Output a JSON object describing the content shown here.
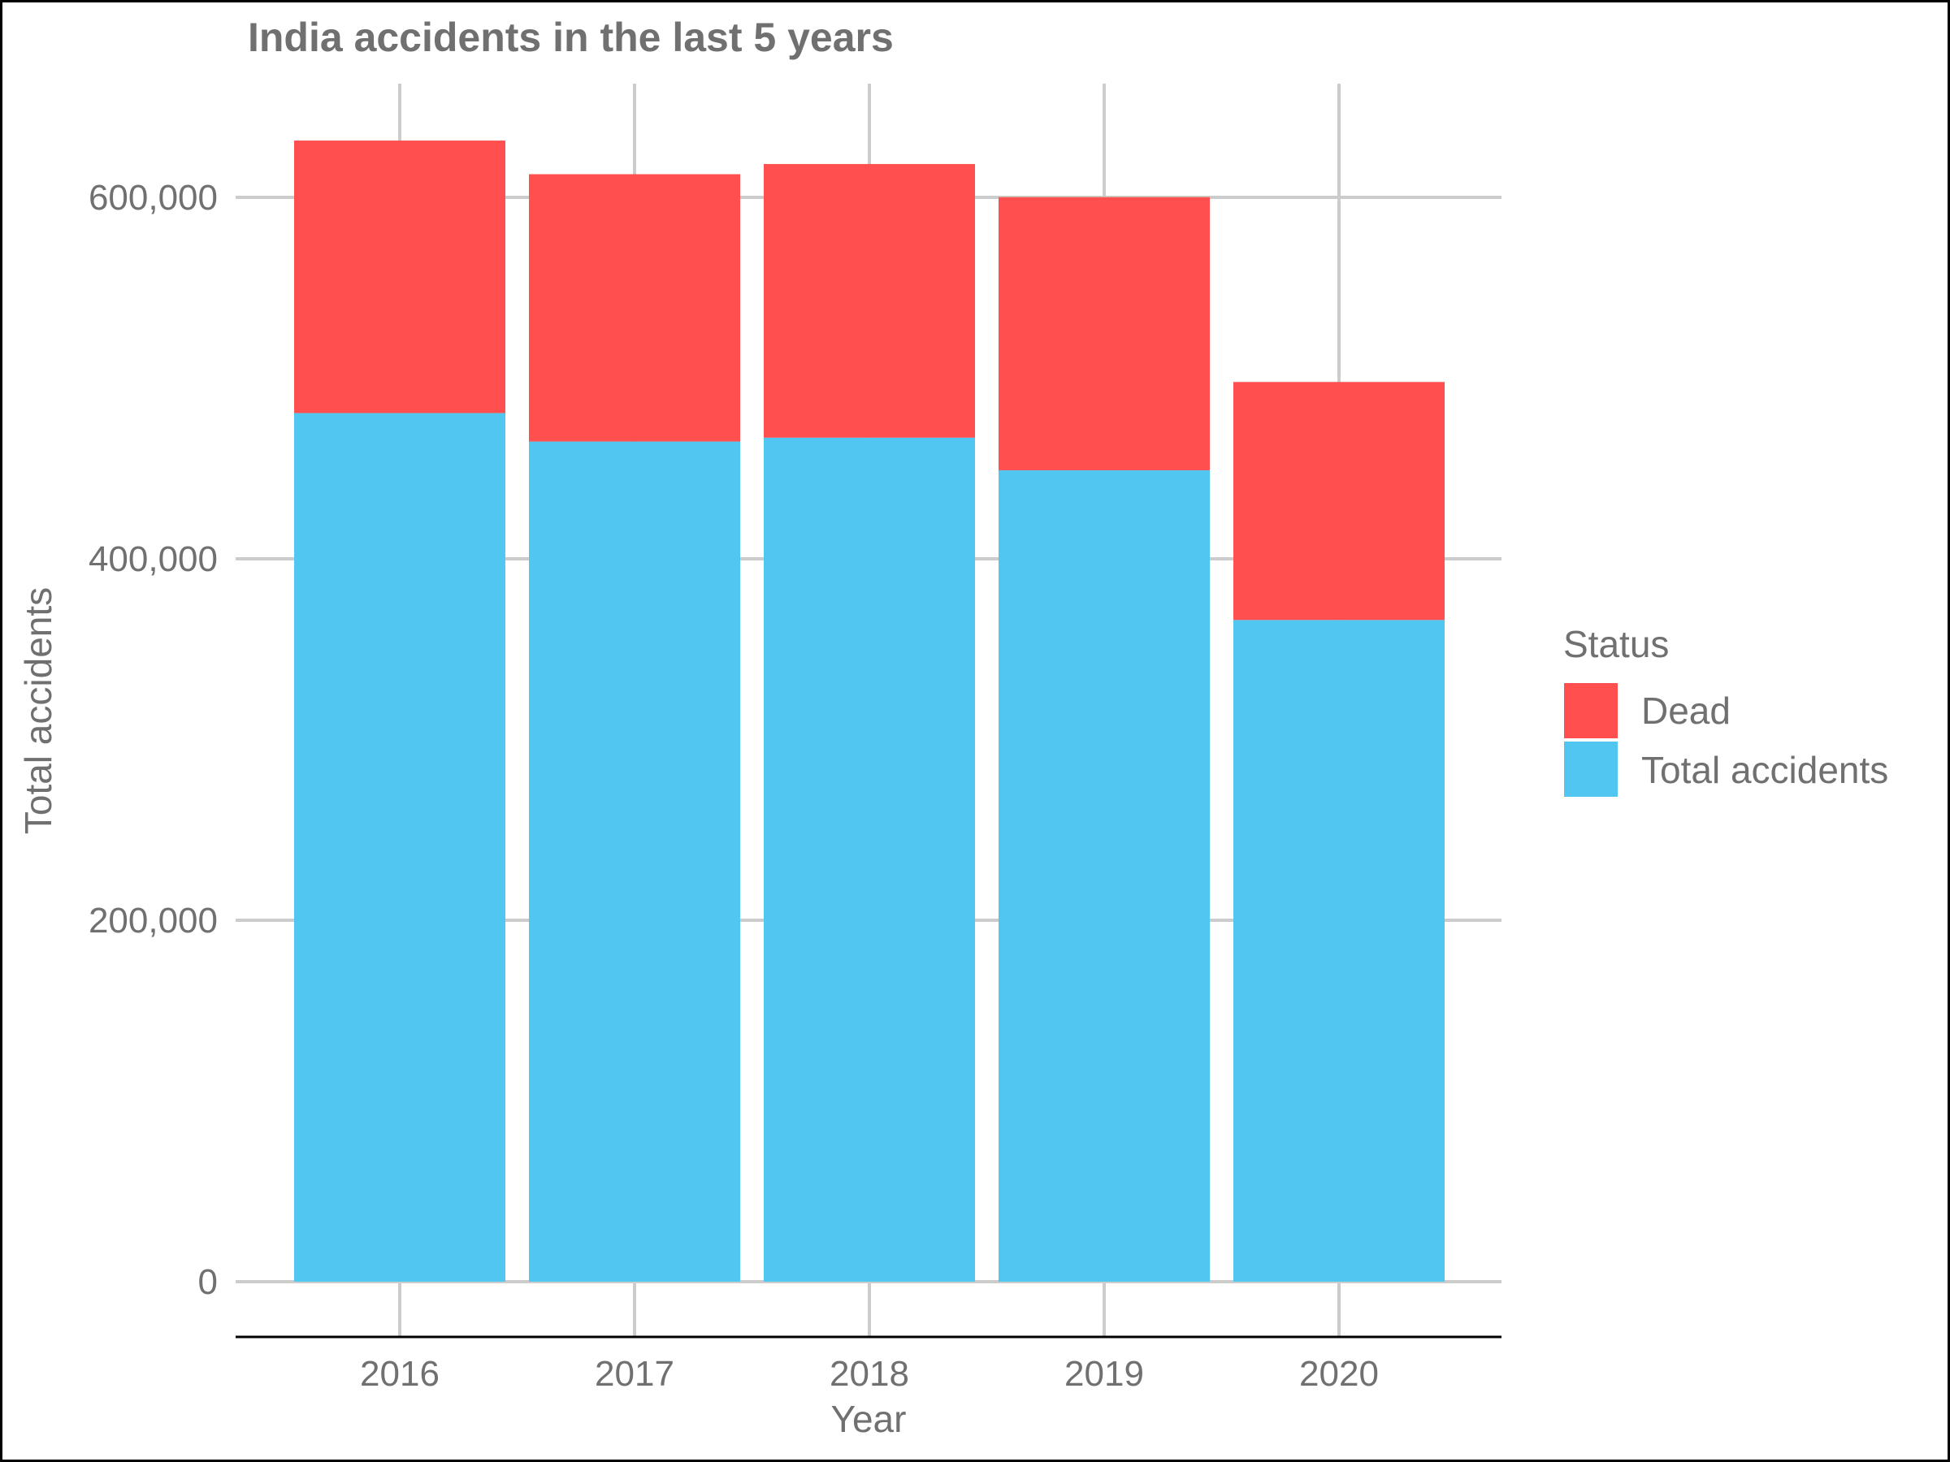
{
  "chart_data": {
    "type": "bar",
    "stacked": true,
    "title": "India accidents in the last 5 years",
    "xlabel": "Year",
    "ylabel": "Total accidents",
    "categories": [
      "2016",
      "2017",
      "2018",
      "2019",
      "2020"
    ],
    "series": [
      {
        "name": "Total accidents",
        "color": "#51C6F0",
        "values": [
          480652,
          464910,
          467044,
          449002,
          366138
        ]
      },
      {
        "name": "Dead",
        "color": "#FF4F4F",
        "values": [
          150785,
          147913,
          151417,
          151113,
          131714
        ]
      }
    ],
    "ylim": [
      -30000,
      665000
    ],
    "yticks": [
      0,
      200000,
      400000,
      600000
    ],
    "ytick_labels": [
      "0",
      "200,000",
      "400,000",
      "600,000"
    ],
    "grid": true,
    "legend": {
      "title": "Status",
      "position": "right",
      "entries": [
        {
          "label": "Dead",
          "color": "#FF4F4F"
        },
        {
          "label": "Total accidents",
          "color": "#51C6F0"
        }
      ]
    }
  }
}
